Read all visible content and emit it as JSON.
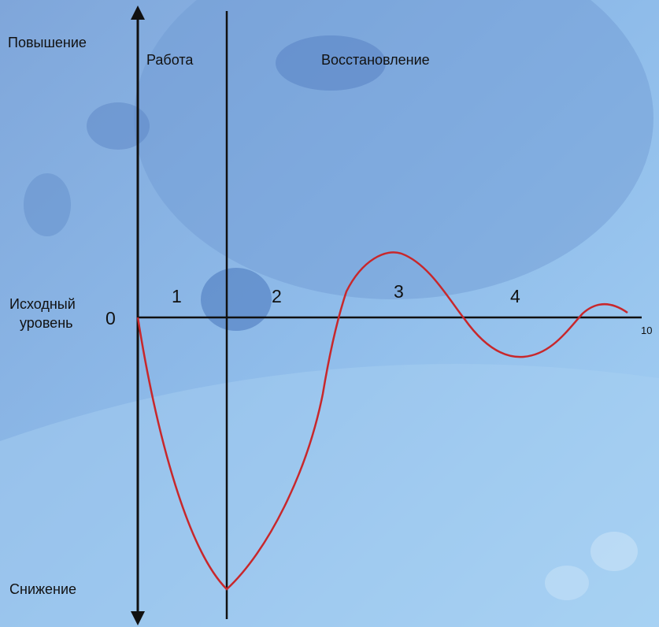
{
  "labels": {
    "increase": "Повышение",
    "work": "Работа",
    "recovery": "Восстановление",
    "baseline": [
      "Исходный",
      "уровень"
    ],
    "zero": "0",
    "phases": [
      "1",
      "2",
      "3",
      "4"
    ],
    "axis_end": "10",
    "decrease": "Снижение"
  }
}
